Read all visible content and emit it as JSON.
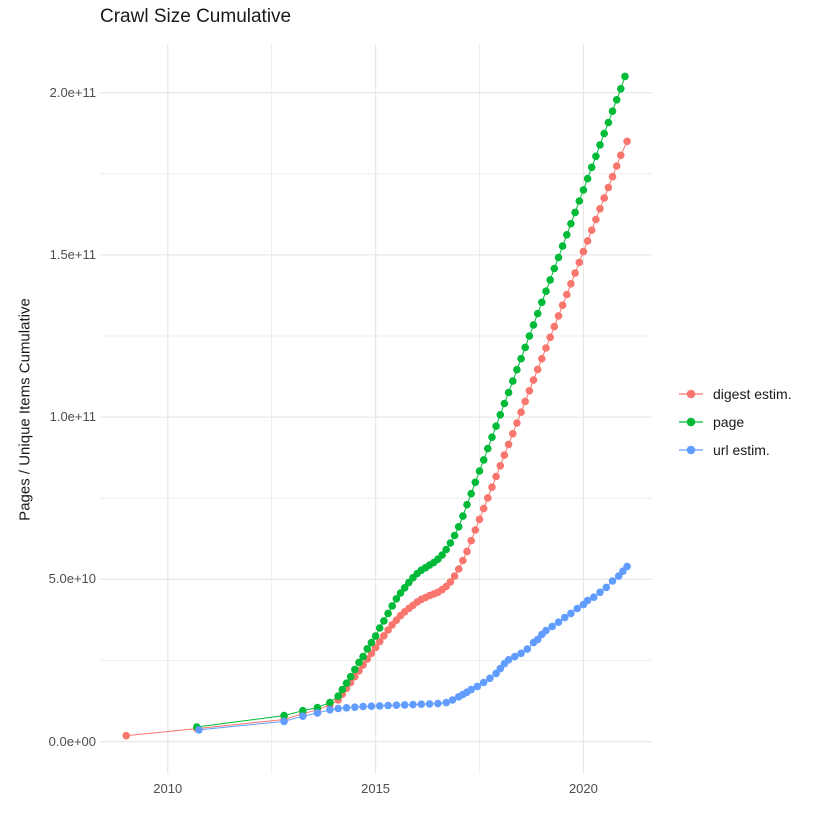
{
  "title": "Crawl Size Cumulative",
  "y_axis": {
    "label": "Pages / Unique Items Cumulative",
    "ticks": [
      {
        "label": "0.0e+00",
        "value": 0
      },
      {
        "label": "5.0e+10",
        "value": 5
      },
      {
        "label": "1.0e+11",
        "value": 10
      },
      {
        "label": "1.5e+11",
        "value": 15
      },
      {
        "label": "2.0e+11",
        "value": 20
      }
    ],
    "minor_tick_values": [
      2.5,
      7.5,
      12.5,
      17.5
    ]
  },
  "x_axis": {
    "ticks": [
      {
        "label": "2010",
        "value": 2010
      },
      {
        "label": "2015",
        "value": 2015
      },
      {
        "label": "2020",
        "value": 2020
      }
    ],
    "minor_tick_values": [
      2012.5,
      2017.5
    ]
  },
  "legend": {
    "items": [
      {
        "label": "digest estim.",
        "color": "#F8766D"
      },
      {
        "label": "page",
        "color": "#00BA38"
      },
      {
        "label": "url estim.",
        "color": "#619CFF"
      }
    ]
  },
  "colors": {
    "grid": "#E8E8E8",
    "axis_text": "#4d4d4d",
    "title_text": "#1a1a1a",
    "background": "#ffffff"
  },
  "chart_data": {
    "type": "line",
    "markers": true,
    "title": "Crawl Size Cumulative",
    "xlabel": "",
    "ylabel": "Pages / Unique Items Cumulative",
    "xlim": [
      2008.4,
      2021.7
    ],
    "ylim": [
      0,
      215000000000.0
    ],
    "grid": true,
    "legend_position": "right",
    "value_unit": "pages, values stored in units of 1e10",
    "series": [
      {
        "name": "digest estim.",
        "color": "#F8766D",
        "points": [
          [
            2009.0,
            0.18
          ],
          [
            2010.7,
            0.4
          ],
          [
            2012.8,
            0.68
          ],
          [
            2013.25,
            0.86
          ],
          [
            2013.6,
            0.98
          ],
          [
            2013.9,
            1.12
          ],
          [
            2014.1,
            1.28
          ],
          [
            2014.2,
            1.46
          ],
          [
            2014.3,
            1.64
          ],
          [
            2014.4,
            1.82
          ],
          [
            2014.5,
            2.0
          ],
          [
            2014.6,
            2.18
          ],
          [
            2014.7,
            2.36
          ],
          [
            2014.8,
            2.54
          ],
          [
            2014.9,
            2.72
          ],
          [
            2015.0,
            2.9
          ],
          [
            2015.1,
            3.08
          ],
          [
            2015.2,
            3.26
          ],
          [
            2015.3,
            3.44
          ],
          [
            2015.4,
            3.6
          ],
          [
            2015.5,
            3.74
          ],
          [
            2015.6,
            3.88
          ],
          [
            2015.7,
            4.0
          ],
          [
            2015.8,
            4.1
          ],
          [
            2015.9,
            4.2
          ],
          [
            2016.0,
            4.3
          ],
          [
            2016.1,
            4.38
          ],
          [
            2016.2,
            4.44
          ],
          [
            2016.3,
            4.5
          ],
          [
            2016.4,
            4.55
          ],
          [
            2016.5,
            4.6
          ],
          [
            2016.6,
            4.68
          ],
          [
            2016.7,
            4.78
          ],
          [
            2016.8,
            4.92
          ],
          [
            2016.9,
            5.1
          ],
          [
            2017.0,
            5.32
          ],
          [
            2017.1,
            5.58
          ],
          [
            2017.2,
            5.86
          ],
          [
            2017.3,
            6.19
          ],
          [
            2017.4,
            6.52
          ],
          [
            2017.5,
            6.85
          ],
          [
            2017.6,
            7.18
          ],
          [
            2017.7,
            7.51
          ],
          [
            2017.8,
            7.84
          ],
          [
            2017.9,
            8.17
          ],
          [
            2018.0,
            8.5
          ],
          [
            2018.1,
            8.83
          ],
          [
            2018.2,
            9.16
          ],
          [
            2018.3,
            9.49
          ],
          [
            2018.4,
            9.82
          ],
          [
            2018.5,
            10.15
          ],
          [
            2018.6,
            10.48
          ],
          [
            2018.7,
            10.81
          ],
          [
            2018.8,
            11.14
          ],
          [
            2018.9,
            11.47
          ],
          [
            2019.0,
            11.8
          ],
          [
            2019.1,
            12.13
          ],
          [
            2019.2,
            12.46
          ],
          [
            2019.3,
            12.79
          ],
          [
            2019.4,
            13.12
          ],
          [
            2019.5,
            13.45
          ],
          [
            2019.6,
            13.78
          ],
          [
            2019.7,
            14.11
          ],
          [
            2019.8,
            14.44
          ],
          [
            2019.9,
            14.77
          ],
          [
            2020.0,
            15.1
          ],
          [
            2020.1,
            15.43
          ],
          [
            2020.2,
            15.76
          ],
          [
            2020.3,
            16.09
          ],
          [
            2020.4,
            16.42
          ],
          [
            2020.5,
            16.75
          ],
          [
            2020.6,
            17.08
          ],
          [
            2020.7,
            17.41
          ],
          [
            2020.8,
            17.74
          ],
          [
            2020.9,
            18.07
          ],
          [
            2021.05,
            18.5
          ]
        ]
      },
      {
        "name": "page",
        "color": "#00BA38",
        "points": [
          [
            2010.7,
            0.45
          ],
          [
            2012.8,
            0.8
          ],
          [
            2013.25,
            0.95
          ],
          [
            2013.6,
            1.05
          ],
          [
            2013.9,
            1.2
          ],
          [
            2014.1,
            1.4
          ],
          [
            2014.2,
            1.6
          ],
          [
            2014.3,
            1.8
          ],
          [
            2014.4,
            2.0
          ],
          [
            2014.5,
            2.22
          ],
          [
            2014.6,
            2.44
          ],
          [
            2014.7,
            2.62
          ],
          [
            2014.8,
            2.86
          ],
          [
            2014.9,
            3.05
          ],
          [
            2015.0,
            3.25
          ],
          [
            2015.1,
            3.5
          ],
          [
            2015.2,
            3.72
          ],
          [
            2015.3,
            3.95
          ],
          [
            2015.4,
            4.18
          ],
          [
            2015.5,
            4.4
          ],
          [
            2015.6,
            4.58
          ],
          [
            2015.7,
            4.74
          ],
          [
            2015.8,
            4.9
          ],
          [
            2015.9,
            5.05
          ],
          [
            2016.0,
            5.18
          ],
          [
            2016.1,
            5.28
          ],
          [
            2016.2,
            5.36
          ],
          [
            2016.3,
            5.44
          ],
          [
            2016.4,
            5.52
          ],
          [
            2016.5,
            5.62
          ],
          [
            2016.6,
            5.75
          ],
          [
            2016.7,
            5.92
          ],
          [
            2016.8,
            6.12
          ],
          [
            2016.9,
            6.35
          ],
          [
            2017.0,
            6.62
          ],
          [
            2017.1,
            6.95
          ],
          [
            2017.2,
            7.3
          ],
          [
            2017.3,
            7.64
          ],
          [
            2017.4,
            7.99
          ],
          [
            2017.5,
            8.34
          ],
          [
            2017.6,
            8.68
          ],
          [
            2017.7,
            9.03
          ],
          [
            2017.8,
            9.38
          ],
          [
            2017.9,
            9.72
          ],
          [
            2018.0,
            10.07
          ],
          [
            2018.1,
            10.42
          ],
          [
            2018.2,
            10.76
          ],
          [
            2018.3,
            11.11
          ],
          [
            2018.4,
            11.46
          ],
          [
            2018.5,
            11.8
          ],
          [
            2018.6,
            12.15
          ],
          [
            2018.7,
            12.5
          ],
          [
            2018.8,
            12.84
          ],
          [
            2018.9,
            13.19
          ],
          [
            2019.0,
            13.54
          ],
          [
            2019.1,
            13.88
          ],
          [
            2019.2,
            14.23
          ],
          [
            2019.3,
            14.58
          ],
          [
            2019.4,
            14.92
          ],
          [
            2019.5,
            15.27
          ],
          [
            2019.6,
            15.62
          ],
          [
            2019.7,
            15.96
          ],
          [
            2019.8,
            16.31
          ],
          [
            2019.9,
            16.66
          ],
          [
            2020.0,
            17.0
          ],
          [
            2020.1,
            17.35
          ],
          [
            2020.2,
            17.7
          ],
          [
            2020.3,
            18.04
          ],
          [
            2020.4,
            18.39
          ],
          [
            2020.5,
            18.74
          ],
          [
            2020.6,
            19.08
          ],
          [
            2020.7,
            19.43
          ],
          [
            2020.8,
            19.78
          ],
          [
            2020.9,
            20.12
          ],
          [
            2021.0,
            20.5
          ]
        ]
      },
      {
        "name": "url estim.",
        "color": "#619CFF",
        "points": [
          [
            2010.75,
            0.36
          ],
          [
            2012.8,
            0.62
          ],
          [
            2013.25,
            0.78
          ],
          [
            2013.6,
            0.88
          ],
          [
            2013.9,
            0.98
          ],
          [
            2014.1,
            1.02
          ],
          [
            2014.3,
            1.04
          ],
          [
            2014.5,
            1.06
          ],
          [
            2014.7,
            1.08
          ],
          [
            2014.9,
            1.09
          ],
          [
            2015.1,
            1.1
          ],
          [
            2015.3,
            1.11
          ],
          [
            2015.5,
            1.12
          ],
          [
            2015.7,
            1.13
          ],
          [
            2015.9,
            1.14
          ],
          [
            2016.1,
            1.15
          ],
          [
            2016.3,
            1.16
          ],
          [
            2016.5,
            1.17
          ],
          [
            2016.7,
            1.2
          ],
          [
            2016.85,
            1.28
          ],
          [
            2017.0,
            1.38
          ],
          [
            2017.1,
            1.45
          ],
          [
            2017.2,
            1.52
          ],
          [
            2017.3,
            1.6
          ],
          [
            2017.45,
            1.7
          ],
          [
            2017.6,
            1.82
          ],
          [
            2017.75,
            1.95
          ],
          [
            2017.9,
            2.1
          ],
          [
            2018.0,
            2.25
          ],
          [
            2018.1,
            2.4
          ],
          [
            2018.2,
            2.52
          ],
          [
            2018.35,
            2.62
          ],
          [
            2018.5,
            2.72
          ],
          [
            2018.65,
            2.85
          ],
          [
            2018.8,
            3.05
          ],
          [
            2018.9,
            3.15
          ],
          [
            2019.0,
            3.3
          ],
          [
            2019.1,
            3.42
          ],
          [
            2019.25,
            3.55
          ],
          [
            2019.4,
            3.68
          ],
          [
            2019.55,
            3.82
          ],
          [
            2019.7,
            3.95
          ],
          [
            2019.85,
            4.1
          ],
          [
            2020.0,
            4.22
          ],
          [
            2020.1,
            4.35
          ],
          [
            2020.25,
            4.45
          ],
          [
            2020.4,
            4.6
          ],
          [
            2020.55,
            4.75
          ],
          [
            2020.7,
            4.95
          ],
          [
            2020.85,
            5.1
          ],
          [
            2020.95,
            5.25
          ],
          [
            2021.05,
            5.4
          ]
        ]
      }
    ]
  }
}
